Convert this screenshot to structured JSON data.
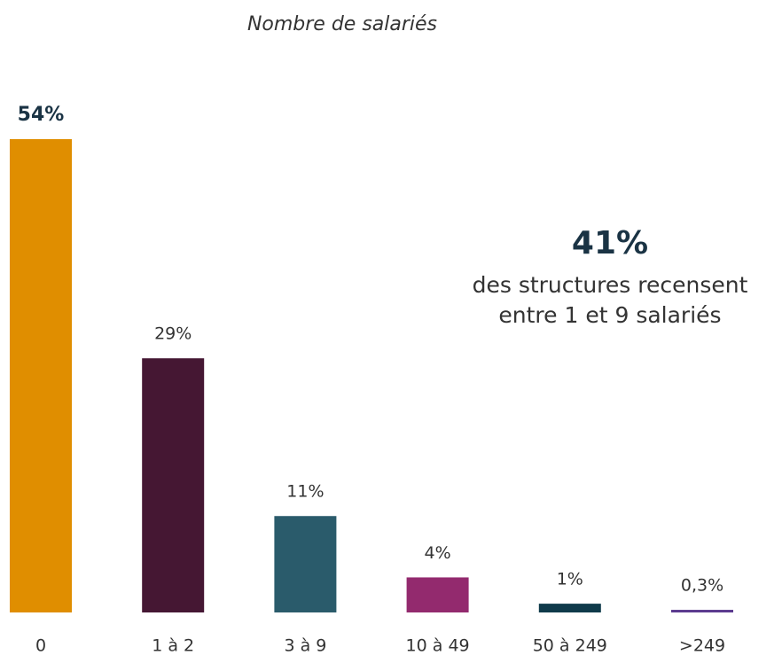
{
  "chart_data": {
    "type": "bar",
    "title": "Nombre de salariés",
    "categories": [
      "0",
      "1 à 2",
      "3 à 9",
      "10 à 49",
      "50 à 249",
      ">249"
    ],
    "values": [
      54,
      29,
      11,
      4,
      1,
      0.3
    ],
    "value_labels": [
      "54%",
      "29%",
      "11%",
      "4%",
      "1%",
      "0,3%"
    ],
    "colors": [
      "#e08e00",
      "#451733",
      "#2a5b6b",
      "#932a6e",
      "#0f3a4a",
      "#5b3a8f"
    ],
    "annotation": {
      "value": "41%",
      "text": [
        "des structures recensent",
        "entre 1 et 9 salariés"
      ]
    }
  }
}
